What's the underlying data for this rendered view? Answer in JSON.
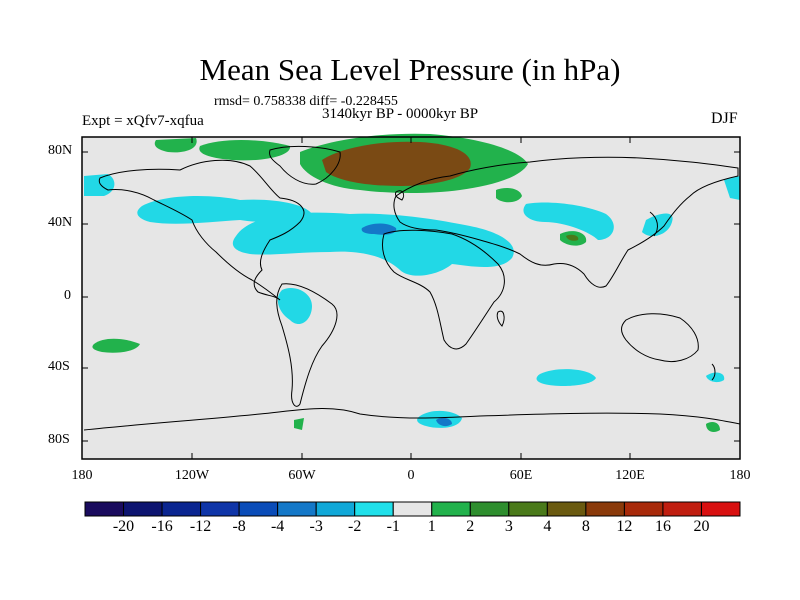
{
  "title": "Mean Sea Level Pressure (in hPa)",
  "stats": "rmsd= 0.758338 diff= -0.228455",
  "experiment": "Expt = xQfv7-xqfua",
  "period": "3140kyr BP - 0000kyr BP",
  "season": "DJF",
  "y_ticks": [
    "80N",
    "40N",
    "0",
    "40S",
    "80S"
  ],
  "x_ticks": [
    "180",
    "120W",
    "60W",
    "0",
    "60E",
    "120E",
    "180"
  ],
  "colorbar": {
    "labels": [
      "-20",
      "-16",
      "-12",
      "-8",
      "-4",
      "-3",
      "-2",
      "-1",
      "1",
      "2",
      "3",
      "4",
      "8",
      "12",
      "16",
      "20"
    ],
    "colors": [
      "#1a0b5e",
      "#0d1470",
      "#0a2590",
      "#0f35a8",
      "#0a4cb8",
      "#1478c8",
      "#10a8d8",
      "#20e0ea",
      "#e6e6e6",
      "#22b24c",
      "#2e8e2e",
      "#4a7a1a",
      "#6a5a10",
      "#8a3a0a",
      "#a82a0a",
      "#c01e10",
      "#d81010"
    ]
  },
  "colors": {
    "map_background": "#e6e6e6",
    "negative_anomaly": "#22d8e6",
    "positive_anomaly": "#22b24c",
    "strong_positive_anomaly": "#7a4a14"
  }
}
